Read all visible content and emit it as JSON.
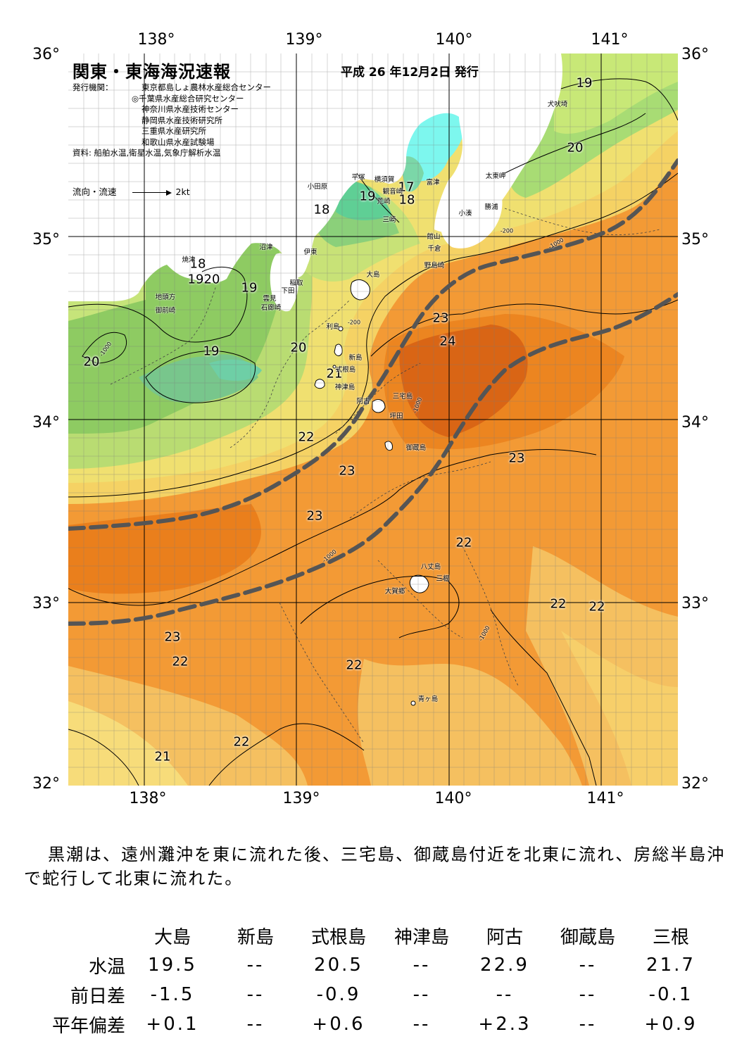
{
  "header": {
    "title": "関東・東海海況速報",
    "issue_date": "平成 26 年12月2日 発行",
    "agency_label": "発行機関：",
    "agencies": [
      "東京都島しょ農林水産総合センター",
      "◎千葉県水産総合研究センター",
      "神奈川県水産技術センター",
      "静岡県水産技術研究所",
      "三重県水産研究所",
      "和歌山県水産試験場"
    ],
    "source": "資料: 船舶水温,衛星水温,気象庁解析水温",
    "current_legend": "流向・流速",
    "current_scale": "2kt"
  },
  "map": {
    "lon_ticks": [
      "138°",
      "139°",
      "140°",
      "141°"
    ],
    "lat_ticks": [
      "36°",
      "35°",
      "34°",
      "33°",
      "32°"
    ],
    "kuroshio_axis_color": "#555555",
    "isotherm_labels": [
      "19",
      "20",
      "18",
      "19",
      "17",
      "18",
      "18",
      "19",
      "20",
      "19",
      "19",
      "20",
      "20",
      "19",
      "21",
      "23",
      "24",
      "22",
      "23",
      "23",
      "23",
      "22",
      "22",
      "22",
      "23",
      "22",
      "22",
      "22",
      "21"
    ],
    "depth_labels": [
      "-200",
      "-1000"
    ],
    "place_names": [
      "犬吠埼",
      "太東岬",
      "勝浦",
      "小湊",
      "富津",
      "横須賀",
      "観音崎",
      "平塚",
      "小田原",
      "荒崎",
      "三崎",
      "館山",
      "千倉",
      "野島崎",
      "沼津",
      "伊東",
      "焼津",
      "稲取",
      "下田",
      "雲見",
      "石廊崎",
      "地頭方",
      "御前崎",
      "大島",
      "利島",
      "新島",
      "式根島",
      "神津島",
      "三宅島",
      "阿古",
      "坪田",
      "御蔵島",
      "八丈島",
      "三根",
      "大賀郷",
      "青ヶ島"
    ]
  },
  "summary": "黒潮は、遠州灘沖を東に流れた後、三宅島、御蔵島付近を北東に流れ、房総半島沖で蛇行して北東に流れた。",
  "table": {
    "columns": [
      "大島",
      "新島",
      "式根島",
      "神津島",
      "阿古",
      "御蔵島",
      "三根"
    ],
    "rows": [
      {
        "label": "水温",
        "values": [
          "19.5",
          "--",
          "20.5",
          "--",
          "22.9",
          "--",
          "21.7"
        ]
      },
      {
        "label": "前日差",
        "values": [
          "-1.5",
          "--",
          "-0.9",
          "--",
          "--",
          "--",
          "-0.1"
        ]
      },
      {
        "label": "平年偏差",
        "values": [
          "+0.1",
          "--",
          "+0.6",
          "--",
          "+2.3",
          "--",
          "+0.9"
        ]
      }
    ]
  }
}
